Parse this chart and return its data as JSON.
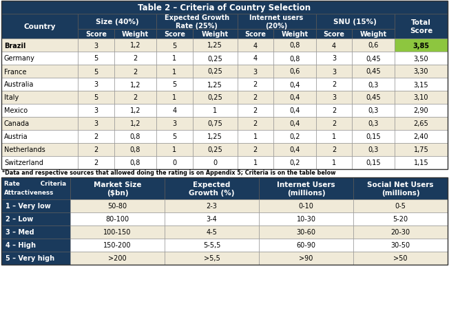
{
  "title": "Table 2 – Criteria of Country Selection",
  "header_bg": "#1a3a5c",
  "header_text": "#ffffff",
  "row_bg_light": "#f0ead8",
  "row_bg_white": "#ffffff",
  "brazil_total_bg": "#8dc63f",
  "footnote": "*Data and respective sources that allowed doing the rating is on Appendix 5; Criteria is on the table below",
  "top_table": {
    "rows": [
      [
        "Brazil",
        "3",
        "1,2",
        "5",
        "1,25",
        "4",
        "0,8",
        "4",
        "0,6",
        "3,85"
      ],
      [
        "Germany",
        "5",
        "2",
        "1",
        "0,25",
        "4",
        "0,8",
        "3",
        "0,45",
        "3,50"
      ],
      [
        "France",
        "5",
        "2",
        "1",
        "0,25",
        "3",
        "0,6",
        "3",
        "0,45",
        "3,30"
      ],
      [
        "Australia",
        "3",
        "1,2",
        "5",
        "1,25",
        "2",
        "0,4",
        "2",
        "0,3",
        "3,15"
      ],
      [
        "Italy",
        "5",
        "2",
        "1",
        "0,25",
        "2",
        "0,4",
        "3",
        "0,45",
        "3,10"
      ],
      [
        "Mexico",
        "3",
        "1,2",
        "4",
        "1",
        "2",
        "0,4",
        "2",
        "0,3",
        "2,90"
      ],
      [
        "Canada",
        "3",
        "1,2",
        "3",
        "0,75",
        "2",
        "0,4",
        "2",
        "0,3",
        "2,65"
      ],
      [
        "Austria",
        "2",
        "0,8",
        "5",
        "1,25",
        "1",
        "0,2",
        "1",
        "0,15",
        "2,40"
      ],
      [
        "Netherlands",
        "2",
        "0,8",
        "1",
        "0,25",
        "2",
        "0,4",
        "2",
        "0,3",
        "1,75"
      ],
      [
        "Switzerland",
        "2",
        "0,8",
        "0",
        "0",
        "1",
        "0,2",
        "1",
        "0,15",
        "1,15"
      ]
    ]
  },
  "bottom_table": {
    "col_headers": [
      "Market Size\n($bn)",
      "Expected\nGrowth (%)",
      "Internet Users\n(millions)",
      "Social Net Users\n(millions)"
    ],
    "rows": [
      [
        "1 – Very low",
        "50-80",
        "2-3",
        "0-10",
        "0-5"
      ],
      [
        "2 – Low",
        "80-100",
        "3-4",
        "10-30",
        "5-20"
      ],
      [
        "3 – Med",
        "100-150",
        "4-5",
        "30-60",
        "20-30"
      ],
      [
        "4 – High",
        "150-200",
        "5-5,5",
        "60-90",
        "30-50"
      ],
      [
        "5 – Very high",
        ">200",
        ">5,5",
        ">90",
        ">50"
      ]
    ]
  }
}
